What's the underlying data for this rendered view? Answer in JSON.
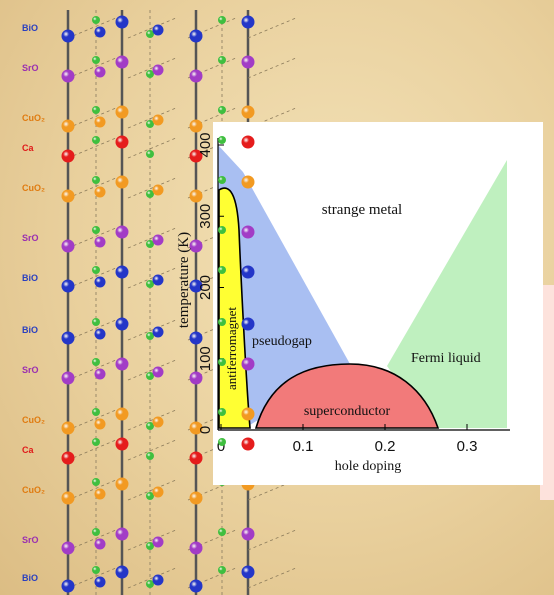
{
  "lattice": {
    "layer_labels": [
      {
        "text": "BiO",
        "color": "#2a3fbf"
      },
      {
        "text": "SrO",
        "color": "#9a2fb0"
      },
      {
        "text": "CuO₂",
        "color": "#e07b10"
      },
      {
        "text": "Ca",
        "color": "#e01a1a"
      },
      {
        "text": "CuO₂",
        "color": "#e07b10"
      },
      {
        "text": "SrO",
        "color": "#9a2fb0"
      },
      {
        "text": "BiO",
        "color": "#2a3fbf"
      },
      {
        "text": "BiO",
        "color": "#2a3fbf"
      },
      {
        "text": "SrO",
        "color": "#9a2fb0"
      },
      {
        "text": "CuO₂",
        "color": "#e07b10"
      },
      {
        "text": "Ca",
        "color": "#e01a1a"
      },
      {
        "text": "CuO₂",
        "color": "#e07b10"
      },
      {
        "text": "SrO",
        "color": "#9a2fb0"
      },
      {
        "text": "BiO",
        "color": "#2a3fbf"
      }
    ],
    "atom_colors": {
      "Bi": "#2436c8",
      "Sr": "#a23cc6",
      "Cu": "#f29a22",
      "Ca": "#e51c1c",
      "O": "#3fbf3f"
    }
  },
  "phase_diagram": {
    "ylabel": "temperature (K)",
    "xlabel": "hole doping",
    "x_ticks": [
      "0",
      "0.1",
      "0.2",
      "0.3"
    ],
    "y_ticks": [
      "0",
      "100",
      "200",
      "300",
      "400"
    ],
    "regions": {
      "strange_metal": "strange metal",
      "pseudogap": "pseudogap",
      "fermi_liquid": "Fermi liquid",
      "superconductor": "superconductor",
      "antiferromagnet": "antiferromagnet"
    },
    "colors": {
      "pseudogap": "#a9bff2",
      "fermi_liquid": "#bff0bf",
      "superconductor": "#f27a7a",
      "antiferromagnet": "#ffff33"
    }
  }
}
